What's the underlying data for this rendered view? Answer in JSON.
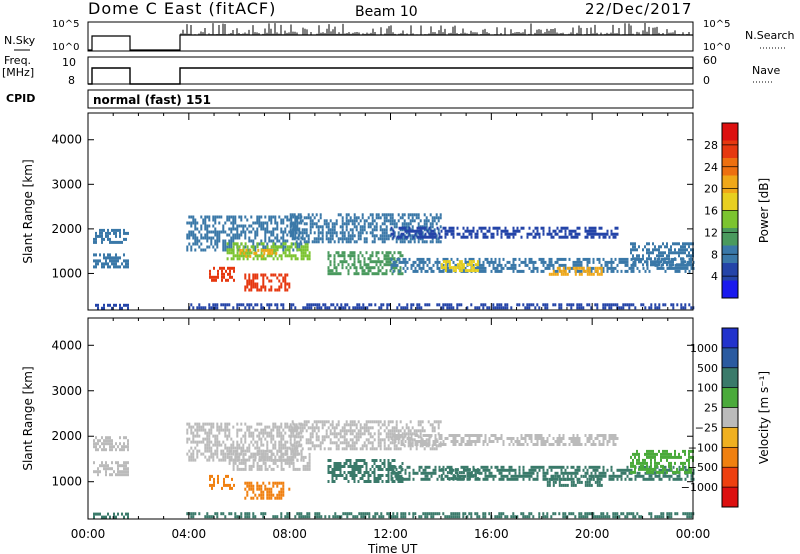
{
  "header": {
    "title": "Dome C East (fitACF)",
    "beam": "Beam 10",
    "date": "22/Dec/2017"
  },
  "top_panels": {
    "nsky": {
      "label": "N.Sky",
      "ticks_left": [
        "10^5",
        "10^0"
      ],
      "right_label": "N.Search",
      "ticks_right": [
        "10^5",
        "10^0"
      ]
    },
    "freq": {
      "label_line1": "Freq.",
      "label_line2": "[MHz]",
      "ticks_left": [
        "10",
        "8"
      ],
      "right_label": "Nave",
      "ticks_right": [
        "60",
        "0"
      ]
    },
    "cpid": {
      "label": "CPID",
      "mode": "normal (fast) 151"
    }
  },
  "chart_data": [
    {
      "type": "heatmap",
      "name": "Power",
      "ylabel": "Slant Range [km]",
      "yticks": [
        "1000",
        "2000",
        "3000",
        "4000"
      ],
      "ylim": [
        180,
        4600
      ],
      "x_unit": "hours UT",
      "xlim": [
        0,
        24
      ],
      "colorbar": {
        "label": "Power [dB]",
        "ticks": [
          "4",
          "8",
          "12",
          "16",
          "20",
          "24",
          "28"
        ],
        "range": [
          0,
          32
        ],
        "colors": [
          "#1a1aee",
          "#2444a8",
          "#3a78a8",
          "#4a9a5e",
          "#7cc430",
          "#e8d020",
          "#f0a818",
          "#ee7010",
          "#e63810",
          "#dd1010"
        ]
      },
      "patches": [
        {
          "t0": 0.2,
          "t1": 1.6,
          "r0": 1700,
          "r1": 2000,
          "value": 7
        },
        {
          "t0": 0.2,
          "t1": 1.6,
          "r0": 1150,
          "r1": 1450,
          "value": 8
        },
        {
          "t0": 0.2,
          "t1": 1.6,
          "r0": 200,
          "r1": 320,
          "value": 5
        },
        {
          "t0": 3.9,
          "t1": 24.0,
          "r0": 200,
          "r1": 330,
          "value": 6
        },
        {
          "t0": 3.9,
          "t1": 8.5,
          "r0": 1500,
          "r1": 2300,
          "value": 9
        },
        {
          "t0": 5.5,
          "t1": 8.8,
          "r0": 1300,
          "r1": 1700,
          "value": 15
        },
        {
          "t0": 6.0,
          "t1": 7.5,
          "r0": 1350,
          "r1": 1550,
          "value": 20
        },
        {
          "t0": 4.8,
          "t1": 5.8,
          "r0": 850,
          "r1": 1150,
          "value": 26
        },
        {
          "t0": 6.2,
          "t1": 8.0,
          "r0": 650,
          "r1": 1000,
          "value": 27
        },
        {
          "t0": 8.0,
          "t1": 14.0,
          "r0": 1700,
          "r1": 2350,
          "value": 8
        },
        {
          "t0": 9.5,
          "t1": 12.5,
          "r0": 1000,
          "r1": 1500,
          "value": 10
        },
        {
          "t0": 12.0,
          "t1": 24.0,
          "r0": 1050,
          "r1": 1350,
          "value": 9
        },
        {
          "t0": 14.0,
          "t1": 15.5,
          "r0": 1050,
          "r1": 1300,
          "value": 16
        },
        {
          "t0": 18.2,
          "t1": 20.4,
          "r0": 950,
          "r1": 1150,
          "value": 22
        },
        {
          "t0": 21.5,
          "t1": 24.0,
          "r0": 1200,
          "r1": 1700,
          "value": 8
        },
        {
          "t0": 12.0,
          "t1": 21.0,
          "r0": 1800,
          "r1": 2050,
          "value": 6
        }
      ]
    },
    {
      "type": "heatmap",
      "name": "Velocity",
      "ylabel": "Slant Range [km]",
      "yticks": [
        "1000",
        "2000",
        "3000",
        "4000"
      ],
      "ylim": [
        180,
        4600
      ],
      "x_unit": "hours UT",
      "xlim": [
        0,
        24
      ],
      "colorbar": {
        "label": "Velocity [m s⁻¹]",
        "ticks": [
          "1000",
          "500",
          "100",
          "25",
          "−25",
          "−100",
          "−500",
          "−1000"
        ],
        "colors": [
          "#2233cc",
          "#2a5aa0",
          "#3a7a6a",
          "#4aaa3a",
          "#bbbbbb",
          "#f0b020",
          "#f08010",
          "#ee4010",
          "#dd1010"
        ]
      },
      "patches": [
        {
          "t0": 0.2,
          "t1": 1.6,
          "r0": 1700,
          "r1": 2000,
          "value": 0
        },
        {
          "t0": 0.2,
          "t1": 1.6,
          "r0": 1150,
          "r1": 1450,
          "value": 5
        },
        {
          "t0": 0.2,
          "t1": 1.6,
          "r0": 200,
          "r1": 320,
          "value": 120
        },
        {
          "t0": 3.9,
          "t1": 24.0,
          "r0": 200,
          "r1": 330,
          "value": 150
        },
        {
          "t0": 3.9,
          "t1": 8.5,
          "r0": 1500,
          "r1": 2300,
          "value": 0
        },
        {
          "t0": 5.5,
          "t1": 8.8,
          "r0": 1300,
          "r1": 1700,
          "value": 10
        },
        {
          "t0": 4.8,
          "t1": 5.8,
          "r0": 850,
          "r1": 1150,
          "value": -250
        },
        {
          "t0": 6.2,
          "t1": 8.0,
          "r0": 650,
          "r1": 1000,
          "value": -300
        },
        {
          "t0": 8.0,
          "t1": 14.0,
          "r0": 1700,
          "r1": 2350,
          "value": 0
        },
        {
          "t0": 9.5,
          "t1": 12.5,
          "r0": 1000,
          "r1": 1500,
          "value": 300
        },
        {
          "t0": 12.0,
          "t1": 24.0,
          "r0": 1050,
          "r1": 1350,
          "value": 250
        },
        {
          "t0": 14.0,
          "t1": 15.5,
          "r0": 1050,
          "r1": 1300,
          "value": 120
        },
        {
          "t0": 18.2,
          "t1": 20.4,
          "r0": 950,
          "r1": 1150,
          "value": 400
        },
        {
          "t0": 21.5,
          "t1": 24.0,
          "r0": 1200,
          "r1": 1700,
          "value": 60
        },
        {
          "t0": 12.0,
          "t1": 21.0,
          "r0": 1800,
          "r1": 2050,
          "value": 0
        }
      ]
    }
  ],
  "xaxis": {
    "ticks": [
      "00:00",
      "04:00",
      "08:00",
      "12:00",
      "16:00",
      "20:00",
      "00:00"
    ],
    "label": "Time UT"
  }
}
